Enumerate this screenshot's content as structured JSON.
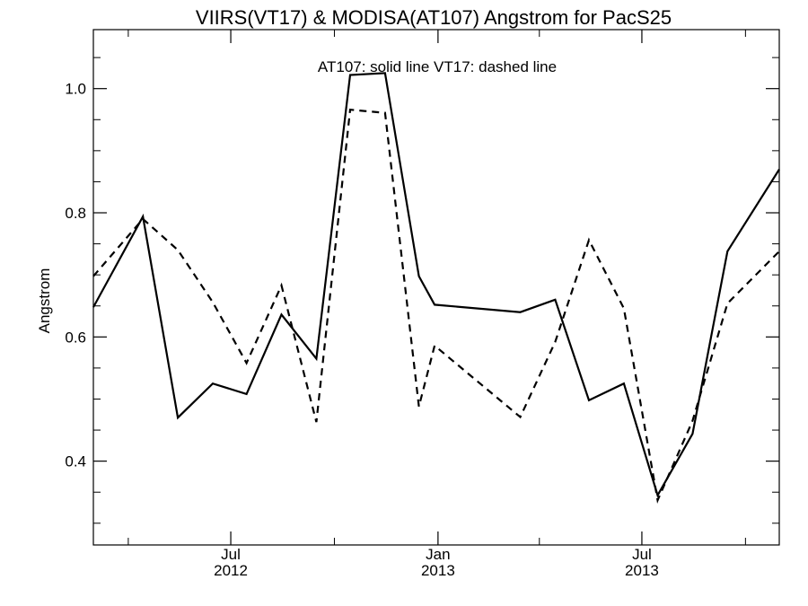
{
  "chart_data": {
    "type": "line",
    "title": "VIIRS(VT17) & MODISA(AT107)  Angstrom for PacS25",
    "annotation": "AT107: solid line   VT17: dashed line",
    "xlabel": "",
    "ylabel": "Angstrom",
    "xlim": [
      "2012-03-01",
      "2013-10-31"
    ],
    "ylim": [
      0.265,
      1.095
    ],
    "y_ticks": [
      0.4,
      0.6,
      0.8,
      1.0
    ],
    "y_tick_labels": [
      "0.4",
      "0.6",
      "0.8",
      "1.0"
    ],
    "x_ticks": [
      {
        "date": "2012-07-01",
        "month": "Jul",
        "year": "2012"
      },
      {
        "date": "2013-01-01",
        "month": "Jan",
        "year": "2013"
      },
      {
        "date": "2013-07-01",
        "month": "Jul",
        "year": "2013"
      }
    ],
    "grid": false,
    "series": [
      {
        "name": "AT107",
        "style": "solid",
        "color": "#000000",
        "points": [
          {
            "x": "2012-03-01",
            "y": 0.648
          },
          {
            "x": "2012-04-14",
            "y": 0.794
          },
          {
            "x": "2012-05-15",
            "y": 0.47
          },
          {
            "x": "2012-06-15",
            "y": 0.525
          },
          {
            "x": "2012-07-15",
            "y": 0.508
          },
          {
            "x": "2012-08-15",
            "y": 0.636
          },
          {
            "x": "2012-09-15",
            "y": 0.565
          },
          {
            "x": "2012-10-15",
            "y": 1.022
          },
          {
            "x": "2012-11-15",
            "y": 1.025
          },
          {
            "x": "2012-12-15",
            "y": 0.698
          },
          {
            "x": "2012-12-29",
            "y": 0.652
          },
          {
            "x": "2013-03-15",
            "y": 0.64
          },
          {
            "x": "2013-04-15",
            "y": 0.66
          },
          {
            "x": "2013-05-15",
            "y": 0.498
          },
          {
            "x": "2013-06-15",
            "y": 0.525
          },
          {
            "x": "2013-07-15",
            "y": 0.345
          },
          {
            "x": "2013-08-15",
            "y": 0.444
          },
          {
            "x": "2013-09-15",
            "y": 0.738
          },
          {
            "x": "2013-10-31",
            "y": 0.87
          }
        ]
      },
      {
        "name": "VT17",
        "style": "dashed",
        "color": "#000000",
        "points": [
          {
            "x": "2012-03-01",
            "y": 0.698
          },
          {
            "x": "2012-04-14",
            "y": 0.79
          },
          {
            "x": "2012-05-15",
            "y": 0.74
          },
          {
            "x": "2012-06-15",
            "y": 0.656
          },
          {
            "x": "2012-07-15",
            "y": 0.558
          },
          {
            "x": "2012-08-15",
            "y": 0.683
          },
          {
            "x": "2012-09-15",
            "y": 0.463
          },
          {
            "x": "2012-10-15",
            "y": 0.966
          },
          {
            "x": "2012-11-15",
            "y": 0.961
          },
          {
            "x": "2012-12-15",
            "y": 0.488
          },
          {
            "x": "2012-12-29",
            "y": 0.586
          },
          {
            "x": "2013-03-15",
            "y": 0.471
          },
          {
            "x": "2013-04-15",
            "y": 0.592
          },
          {
            "x": "2013-05-15",
            "y": 0.756
          },
          {
            "x": "2013-06-15",
            "y": 0.646
          },
          {
            "x": "2013-07-15",
            "y": 0.337
          },
          {
            "x": "2013-08-15",
            "y": 0.465
          },
          {
            "x": "2013-09-15",
            "y": 0.654
          },
          {
            "x": "2013-10-31",
            "y": 0.738
          }
        ]
      }
    ]
  }
}
